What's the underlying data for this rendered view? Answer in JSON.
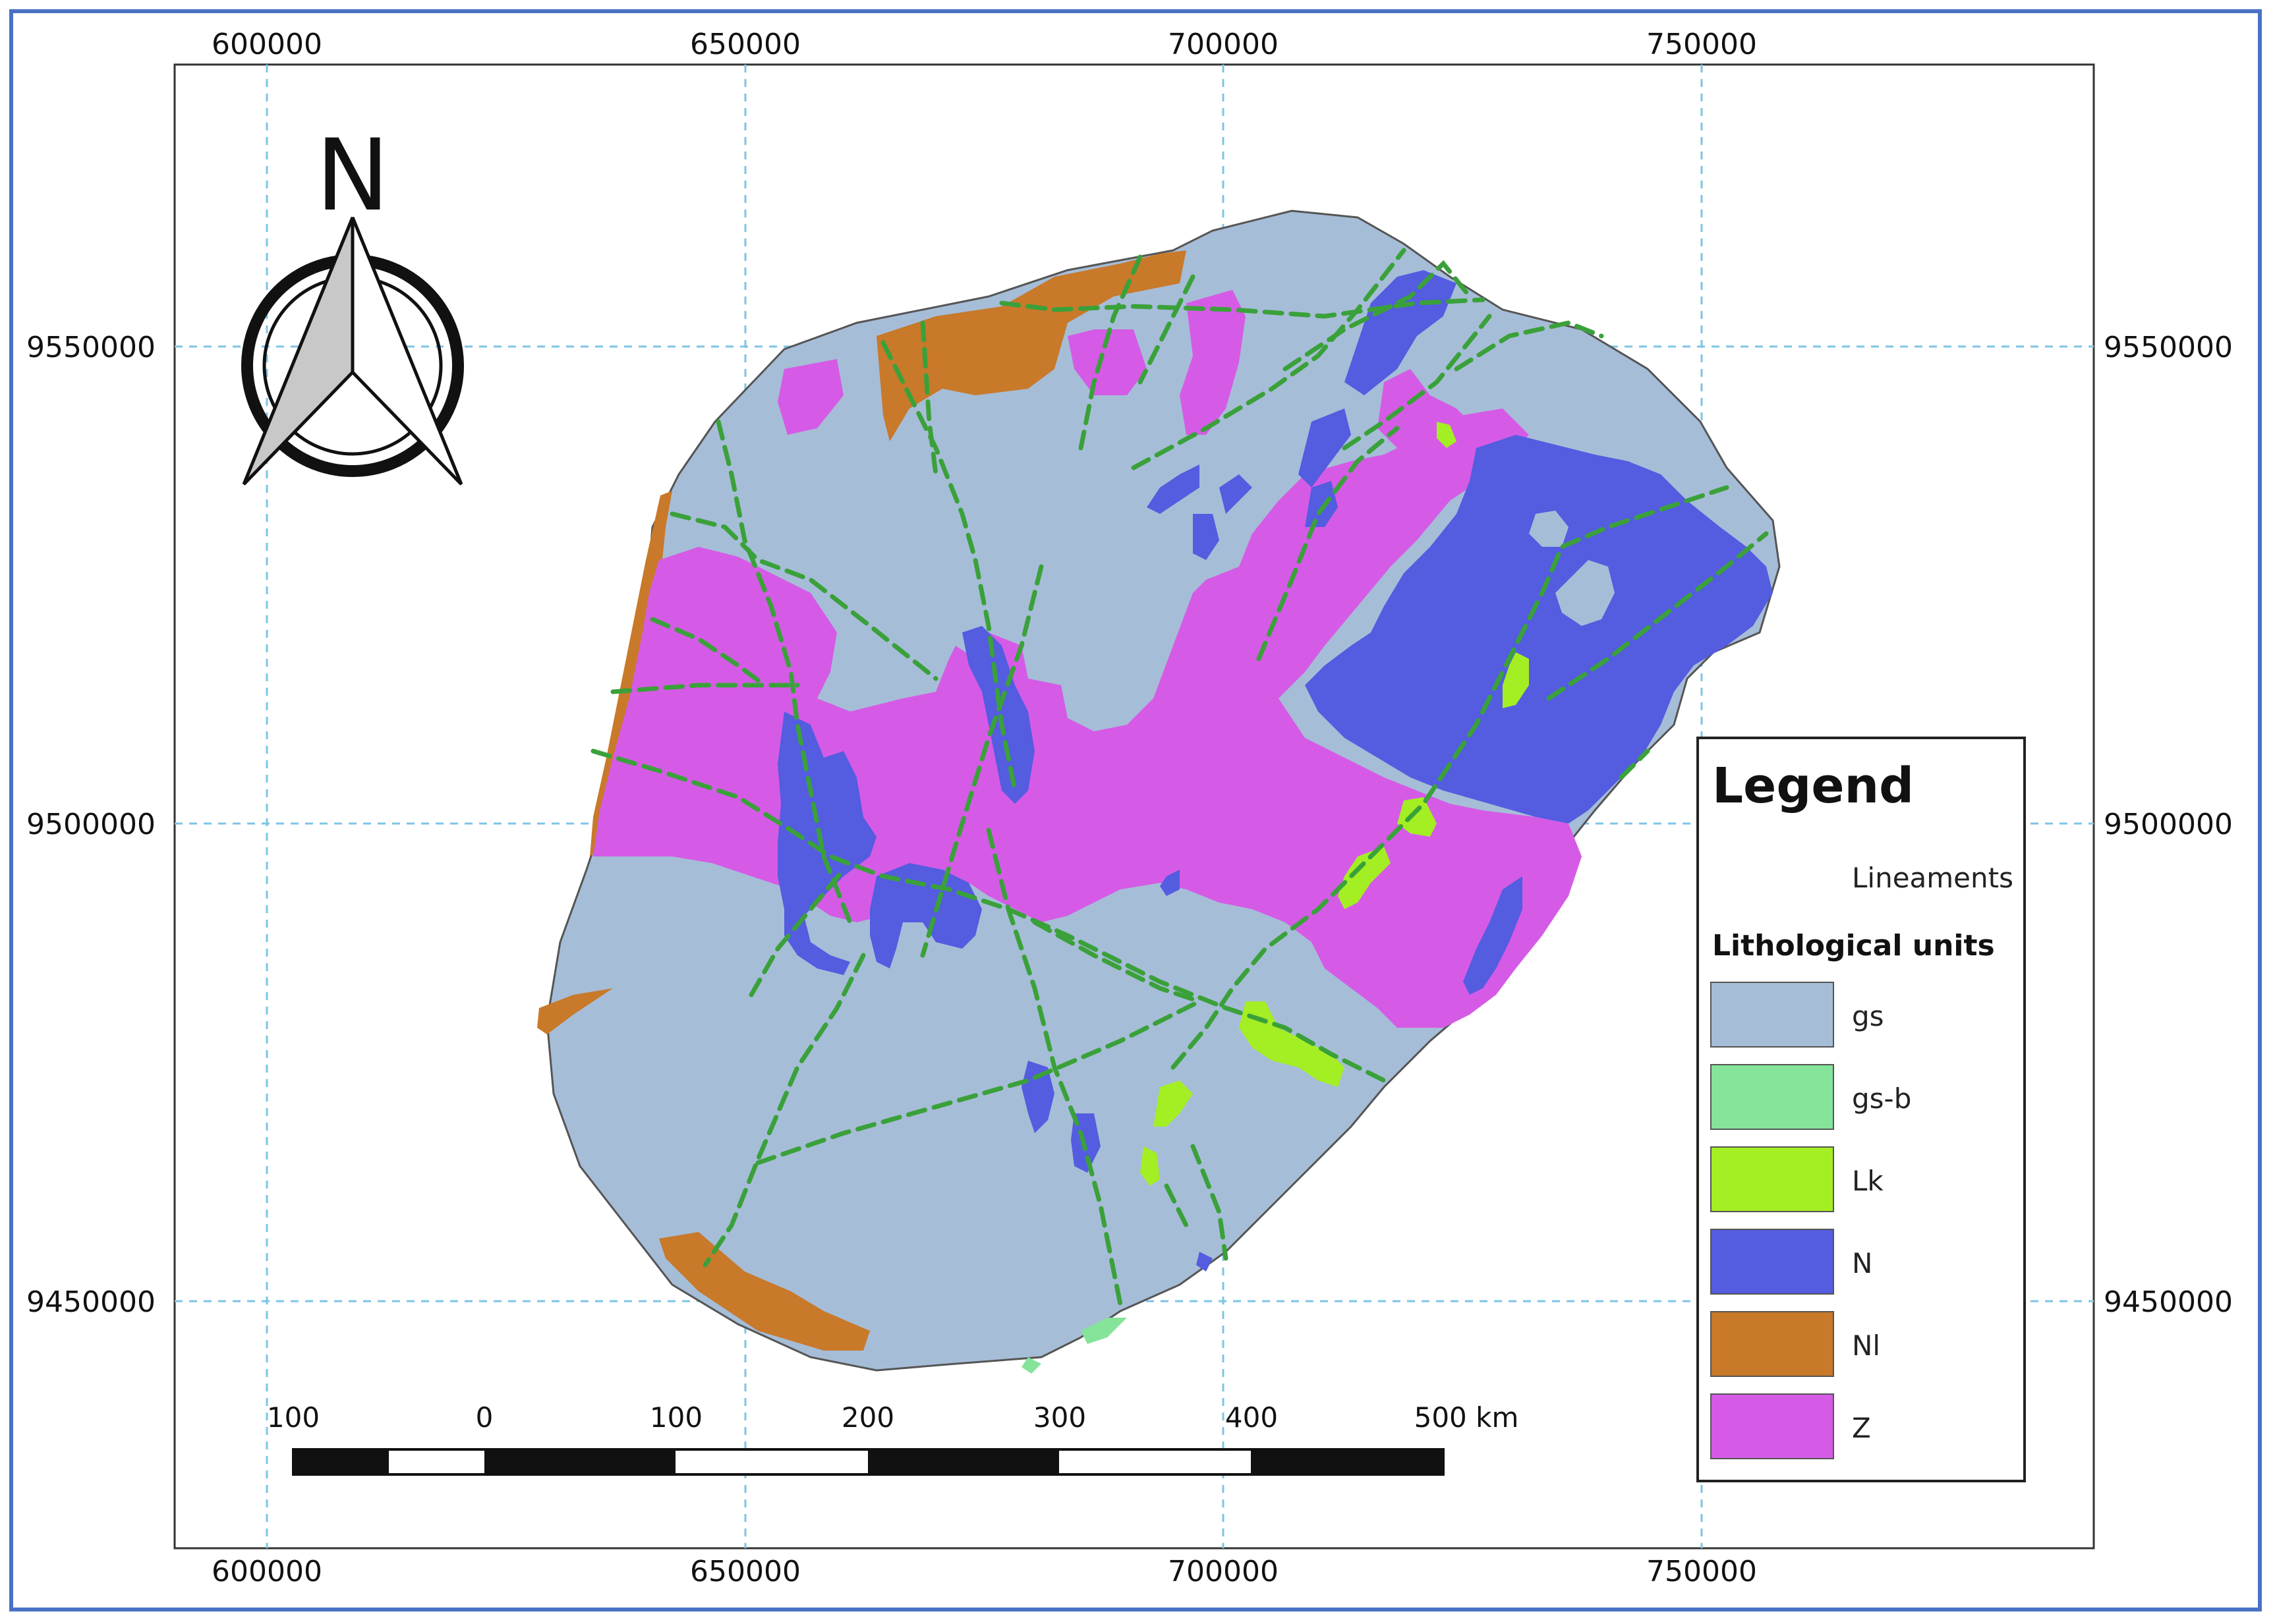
{
  "map": {
    "north_label": "N",
    "x_ticks_top": [
      "600000",
      "650000",
      "700000",
      "750000"
    ],
    "x_ticks_bottom": [
      "600000",
      "650000",
      "700000",
      "750000"
    ],
    "y_ticks_left": [
      "9550000",
      "9500000",
      "9450000"
    ],
    "y_ticks_right": [
      "9550000",
      "9500000",
      "9450000"
    ],
    "scale_labels": [
      "100",
      "0",
      "100",
      "200",
      "300",
      "400",
      "500 km"
    ]
  },
  "legend": {
    "title": "Legend",
    "lineaments_label": "Lineaments",
    "units_heading": "Lithological units",
    "units": [
      {
        "label": "gs",
        "color": "#a6bdd7"
      },
      {
        "label": "gs-b",
        "color": "#86e39a"
      },
      {
        "label": "Lk",
        "color": "#a4ee24"
      },
      {
        "label": "N",
        "color": "#545ce0"
      },
      {
        "label": "Nl",
        "color": "#c8792a"
      },
      {
        "label": "Z",
        "color": "#d55be6"
      }
    ]
  },
  "colors": {
    "lineament": "#3aa13a",
    "grid": "#7cc4e6",
    "frame": "#4a72c4"
  }
}
